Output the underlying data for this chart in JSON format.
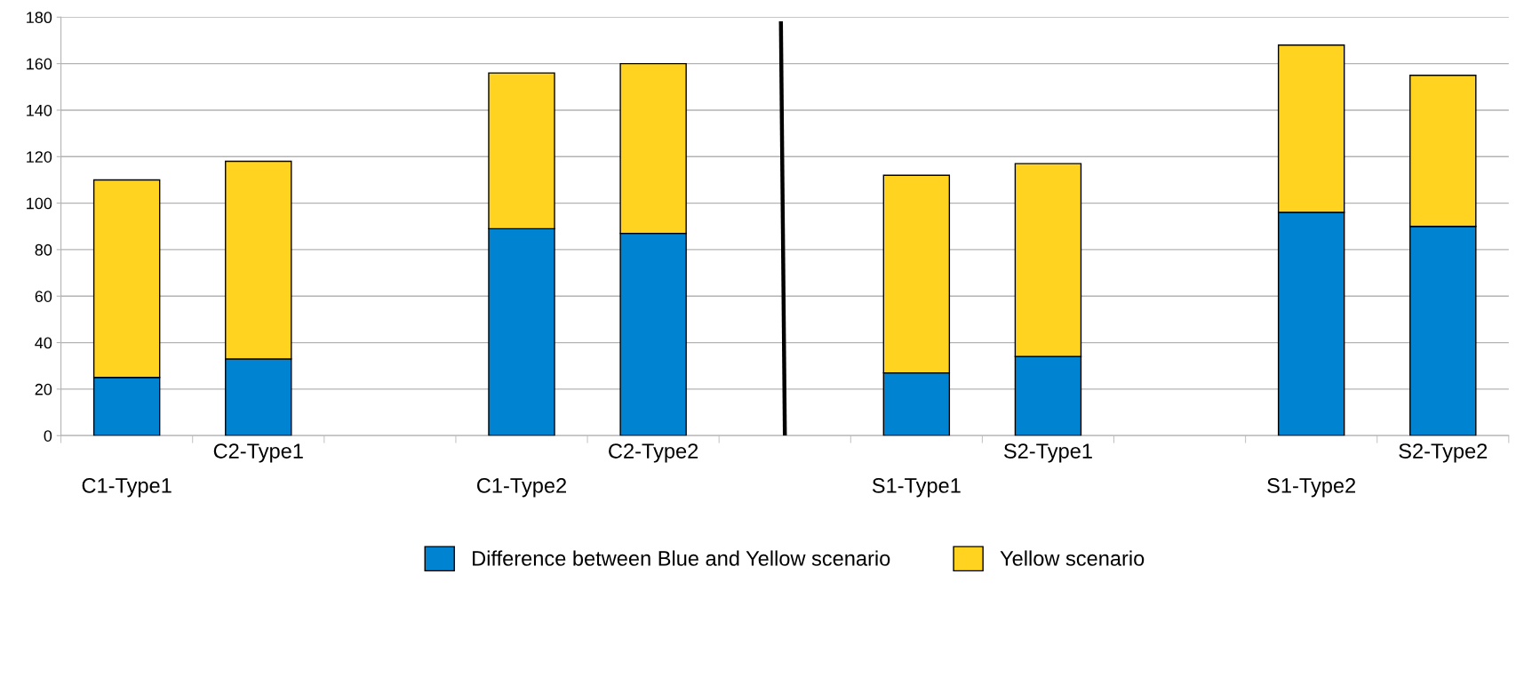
{
  "chart_data": {
    "type": "bar",
    "stacked": true,
    "categories": [
      "C1-Type1",
      "C2-Type1",
      null,
      "C1-Type2",
      "C2-Type2",
      null,
      "S1-Type1",
      "S2-Type1",
      null,
      "S1-Type2",
      "S2-Type2"
    ],
    "series": [
      {
        "name": "Difference between Blue and Yellow scenario",
        "color": "#0083d1",
        "values": [
          25,
          33,
          null,
          89,
          87,
          null,
          27,
          34,
          null,
          96,
          90
        ]
      },
      {
        "name": "Yellow scenario",
        "color": "#ffd320",
        "values": [
          85,
          85,
          null,
          67,
          73,
          null,
          85,
          83,
          null,
          72,
          65
        ]
      }
    ],
    "ylim": [
      0,
      180
    ],
    "yticks": [
      0,
      20,
      40,
      60,
      80,
      100,
      120,
      140,
      160,
      180
    ],
    "grid": "y",
    "legend": "bottom"
  }
}
